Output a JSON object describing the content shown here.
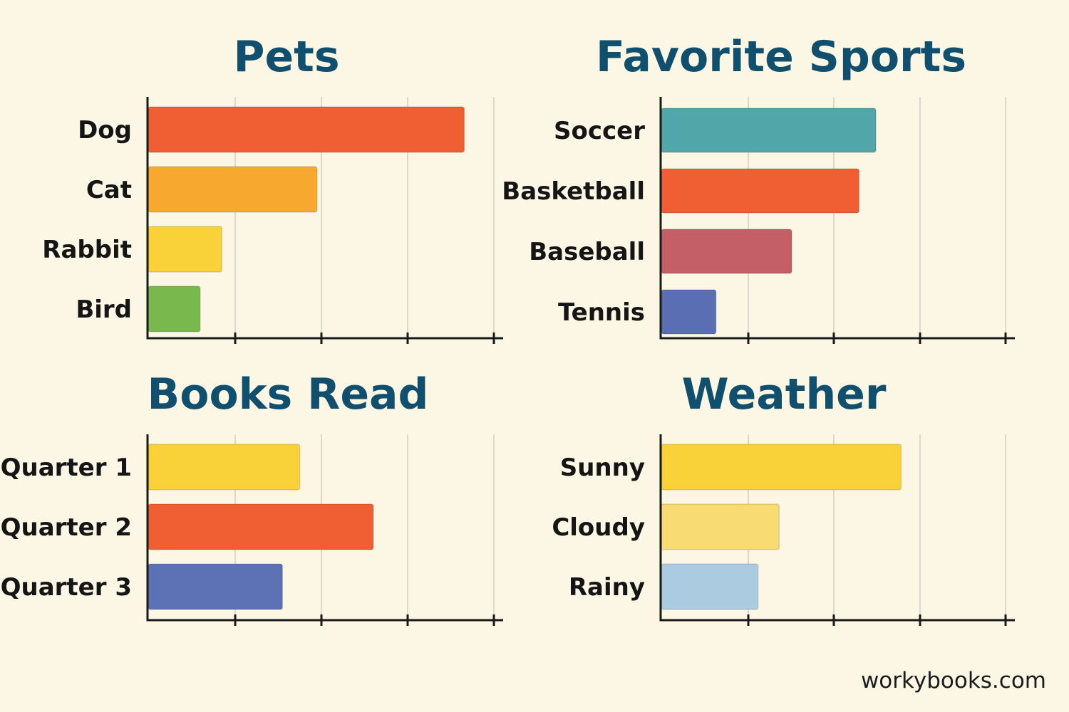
{
  "chart_data": [
    {
      "type": "bar",
      "title": "Pets",
      "categories": [
        "Dog",
        "Cat",
        "Rabbit",
        "Bird"
      ],
      "values": [
        7.3,
        3.9,
        1.7,
        1.2
      ],
      "colors": [
        "#f05e33",
        "#f7a92f",
        "#f9d23a",
        "#79b84c"
      ],
      "xlim": [
        0,
        8
      ],
      "grid": true,
      "xlabel": "",
      "ylabel": ""
    },
    {
      "type": "bar",
      "title": "Favorite Sports",
      "categories": [
        "Soccer",
        "Basketball",
        "Baseball",
        "Tennis"
      ],
      "values": [
        5.1,
        4.7,
        3.1,
        1.3
      ],
      "colors": [
        "#50a6a8",
        "#f05e33",
        "#c45f68",
        "#5a6fb3"
      ],
      "xlim": [
        0,
        8.2
      ],
      "grid": true,
      "xlabel": "",
      "ylabel": ""
    },
    {
      "type": "bar",
      "title": "Books Read",
      "categories": [
        "Quarter 1",
        "Quarter 2",
        "Quarter 3"
      ],
      "values": [
        3.5,
        5.2,
        3.1
      ],
      "colors": [
        "#f9d23a",
        "#f05e33",
        "#5d72b4"
      ],
      "xlim": [
        0,
        8
      ],
      "grid": true,
      "xlabel": "",
      "ylabel": ""
    },
    {
      "type": "bar",
      "title": "Weather",
      "categories": [
        "Sunny",
        "Cloudy",
        "Rainy"
      ],
      "values": [
        5.7,
        2.8,
        2.3
      ],
      "colors": [
        "#f9d23a",
        "#f9db74",
        "#abcbe0"
      ],
      "xlim": [
        0,
        8.2
      ],
      "grid": true,
      "xlabel": "",
      "ylabel": ""
    }
  ],
  "footer": {
    "site": "workybooks.com"
  }
}
